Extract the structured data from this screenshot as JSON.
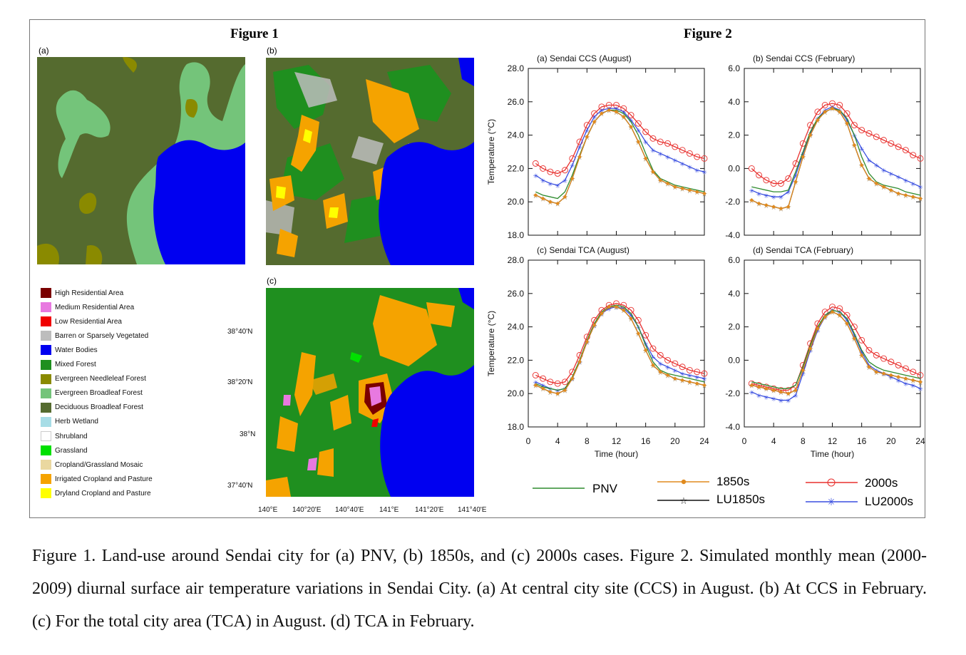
{
  "figure1": {
    "title": "Figure 1",
    "panel_labels": [
      "(a)",
      "(b)",
      "(c)"
    ],
    "legend": [
      {
        "label": "High Residential Area",
        "color": "#7a0000"
      },
      {
        "label": "Medium Residential Area",
        "color": "#e879e0"
      },
      {
        "label": "Low Residential Area",
        "color": "#f00000"
      },
      {
        "label": "Barren or Sparsely Vegetated",
        "color": "#bdbdbd"
      },
      {
        "label": "Water Bodies",
        "color": "#0000f0"
      },
      {
        "label": "Mixed Forest",
        "color": "#1f8f1f"
      },
      {
        "label": "Evergreen Needleleaf Forest",
        "color": "#8a8a00"
      },
      {
        "label": "Evergreen Broadleaf Forest",
        "color": "#74c47a"
      },
      {
        "label": "Deciduous Broadleaf Forest",
        "color": "#556b2f"
      },
      {
        "label": "Herb Wetland",
        "color": "#a7dde6"
      },
      {
        "label": "Shrubland",
        "color": "#ffffff"
      },
      {
        "label": "Grassland",
        "color": "#00e000"
      },
      {
        "label": "Cropland/Grassland Mosaic",
        "color": "#ead8a0"
      },
      {
        "label": "Irrigated Cropland and Pasture",
        "color": "#f5a300"
      },
      {
        "label": "Dryland Cropland and Pasture",
        "color": "#ffff00"
      }
    ],
    "lat_labels": [
      "38°40'N",
      "38°20'N",
      "38°N",
      "37°40'N"
    ],
    "lon_labels": [
      "140°E",
      "140°20'E",
      "140°40'E",
      "141°E",
      "141°20'E",
      "141°40'E"
    ]
  },
  "figure2": {
    "title": "Figure 2",
    "legend": [
      {
        "name": "PNV",
        "color": "#2e8b2e",
        "marker": "none"
      },
      {
        "name": "1850s",
        "color": "#e08a1e",
        "marker": "dot"
      },
      {
        "name": "LU1850s",
        "color": "#111111",
        "marker": "star"
      },
      {
        "name": "2000s",
        "color": "#e8302e",
        "marker": "circle"
      },
      {
        "name": "LU2000s",
        "color": "#3a4fe0",
        "marker": "asterisk"
      }
    ]
  },
  "chart_data": [
    {
      "type": "line",
      "title": "(a) Sendai CCS (August)",
      "xlabel": "",
      "ylabel": "Temperature (°C)",
      "ylim": [
        18,
        28
      ],
      "yticks": [
        "28.0",
        "26.0",
        "24.0",
        "22.0",
        "20.0",
        "18.0"
      ],
      "xlim": [
        0,
        24
      ],
      "xticks": [],
      "x": [
        1,
        2,
        3,
        4,
        5,
        6,
        7,
        8,
        9,
        10,
        11,
        12,
        13,
        14,
        15,
        16,
        17,
        18,
        19,
        20,
        21,
        22,
        23,
        24
      ],
      "series": [
        {
          "name": "PNV",
          "values": [
            20.6,
            20.4,
            20.3,
            20.2,
            20.6,
            21.6,
            22.8,
            23.9,
            24.8,
            25.3,
            25.5,
            25.5,
            25.3,
            24.8,
            24.0,
            22.9,
            21.9,
            21.4,
            21.2,
            21.0,
            20.9,
            20.8,
            20.7,
            20.6
          ]
        },
        {
          "name": "1850s",
          "values": [
            20.4,
            20.2,
            20.0,
            19.9,
            20.3,
            21.4,
            22.7,
            23.9,
            24.8,
            25.3,
            25.5,
            25.4,
            25.1,
            24.5,
            23.6,
            22.6,
            21.8,
            21.3,
            21.1,
            20.9,
            20.8,
            20.7,
            20.6,
            20.5
          ]
        },
        {
          "name": "LU1850s",
          "values": [
            20.4,
            20.2,
            20.0,
            19.9,
            20.3,
            21.4,
            22.7,
            23.9,
            24.8,
            25.3,
            25.5,
            25.4,
            25.1,
            24.5,
            23.6,
            22.6,
            21.8,
            21.3,
            21.1,
            20.9,
            20.8,
            20.7,
            20.6,
            20.5
          ]
        },
        {
          "name": "2000s",
          "values": [
            22.3,
            22.0,
            21.8,
            21.7,
            21.9,
            22.6,
            23.6,
            24.6,
            25.3,
            25.7,
            25.8,
            25.8,
            25.6,
            25.2,
            24.7,
            24.2,
            23.8,
            23.6,
            23.5,
            23.3,
            23.1,
            22.9,
            22.7,
            22.6
          ]
        },
        {
          "name": "LU2000s",
          "values": [
            21.6,
            21.3,
            21.1,
            21.0,
            21.3,
            22.2,
            23.3,
            24.3,
            25.1,
            25.5,
            25.6,
            25.6,
            25.4,
            24.9,
            24.3,
            23.6,
            23.1,
            22.9,
            22.7,
            22.5,
            22.3,
            22.1,
            21.9,
            21.8
          ]
        }
      ]
    },
    {
      "type": "line",
      "title": "(b) Sendai CCS (February)",
      "xlabel": "",
      "ylabel": "",
      "ylim": [
        -4,
        6
      ],
      "yticks": [
        "6.0",
        "4.0",
        "2.0",
        "0.0",
        "-2.0",
        "-4.0"
      ],
      "xlim": [
        0,
        24
      ],
      "xticks": [],
      "x": [
        1,
        2,
        3,
        4,
        5,
        6,
        7,
        8,
        9,
        10,
        11,
        12,
        13,
        14,
        15,
        16,
        17,
        18,
        19,
        20,
        21,
        22,
        23,
        24
      ],
      "series": [
        {
          "name": "PNV",
          "values": [
            -1.1,
            -1.2,
            -1.3,
            -1.4,
            -1.4,
            -1.3,
            -0.2,
            1.0,
            2.2,
            3.0,
            3.4,
            3.6,
            3.5,
            3.0,
            2.0,
            0.7,
            -0.3,
            -0.8,
            -1.0,
            -1.1,
            -1.2,
            -1.4,
            -1.5,
            -1.6
          ]
        },
        {
          "name": "1850s",
          "values": [
            -1.9,
            -2.1,
            -2.2,
            -2.3,
            -2.4,
            -2.3,
            -0.8,
            0.7,
            2.0,
            2.9,
            3.4,
            3.6,
            3.4,
            2.7,
            1.4,
            0.2,
            -0.6,
            -0.9,
            -1.1,
            -1.3,
            -1.5,
            -1.6,
            -1.7,
            -1.8
          ]
        },
        {
          "name": "LU1850s",
          "values": [
            -1.9,
            -2.1,
            -2.2,
            -2.3,
            -2.4,
            -2.3,
            -0.8,
            0.7,
            2.0,
            2.9,
            3.4,
            3.6,
            3.4,
            2.7,
            1.4,
            0.2,
            -0.6,
            -0.9,
            -1.1,
            -1.3,
            -1.5,
            -1.6,
            -1.7,
            -1.8
          ]
        },
        {
          "name": "2000s",
          "values": [
            0.0,
            -0.4,
            -0.7,
            -0.9,
            -0.9,
            -0.6,
            0.3,
            1.5,
            2.6,
            3.4,
            3.8,
            3.9,
            3.8,
            3.3,
            2.6,
            2.3,
            2.1,
            1.9,
            1.7,
            1.5,
            1.3,
            1.1,
            0.8,
            0.6
          ]
        },
        {
          "name": "LU2000s",
          "values": [
            -1.3,
            -1.5,
            -1.6,
            -1.7,
            -1.7,
            -1.4,
            -0.4,
            0.9,
            2.1,
            3.0,
            3.5,
            3.7,
            3.5,
            2.9,
            2.0,
            1.2,
            0.5,
            0.2,
            -0.1,
            -0.3,
            -0.5,
            -0.7,
            -0.9,
            -1.1
          ]
        }
      ]
    },
    {
      "type": "line",
      "title": "(c) Sendai TCA (August)",
      "xlabel": "Time (hour)",
      "ylabel": "Temperature (°C)",
      "ylim": [
        18,
        28
      ],
      "yticks": [
        "28.0",
        "26.0",
        "24.0",
        "22.0",
        "20.0",
        "18.0"
      ],
      "xlim": [
        0,
        24
      ],
      "xticks": [
        "0",
        "4",
        "8",
        "12",
        "16",
        "20",
        "24"
      ],
      "x": [
        1,
        2,
        3,
        4,
        5,
        6,
        7,
        8,
        9,
        10,
        11,
        12,
        13,
        14,
        15,
        16,
        17,
        18,
        19,
        20,
        21,
        22,
        23,
        24
      ],
      "series": [
        {
          "name": "PNV",
          "values": [
            20.6,
            20.4,
            20.3,
            20.2,
            20.3,
            21.0,
            22.0,
            23.2,
            24.2,
            24.9,
            25.2,
            25.3,
            25.2,
            24.8,
            24.0,
            22.9,
            21.9,
            21.4,
            21.2,
            21.1,
            21.0,
            20.9,
            20.8,
            20.7
          ]
        },
        {
          "name": "1850s",
          "values": [
            20.5,
            20.3,
            20.1,
            20.0,
            20.2,
            20.9,
            21.9,
            23.1,
            24.1,
            24.8,
            25.2,
            25.2,
            25.0,
            24.5,
            23.6,
            22.6,
            21.7,
            21.3,
            21.1,
            20.9,
            20.8,
            20.7,
            20.6,
            20.5
          ]
        },
        {
          "name": "LU1850s",
          "values": [
            20.5,
            20.3,
            20.1,
            20.0,
            20.2,
            20.9,
            21.9,
            23.1,
            24.1,
            24.8,
            25.2,
            25.2,
            25.0,
            24.5,
            23.6,
            22.6,
            21.7,
            21.3,
            21.1,
            20.9,
            20.8,
            20.7,
            20.6,
            20.5
          ]
        },
        {
          "name": "2000s",
          "values": [
            21.1,
            20.9,
            20.7,
            20.6,
            20.7,
            21.3,
            22.3,
            23.4,
            24.4,
            25.0,
            25.3,
            25.4,
            25.3,
            25.0,
            24.4,
            23.5,
            22.7,
            22.3,
            22.0,
            21.8,
            21.6,
            21.4,
            21.3,
            21.2
          ]
        },
        {
          "name": "LU2000s",
          "values": [
            20.7,
            20.5,
            20.3,
            20.2,
            20.3,
            20.9,
            21.9,
            23.1,
            24.1,
            24.8,
            25.1,
            25.2,
            25.1,
            24.7,
            24.0,
            23.0,
            22.2,
            21.8,
            21.6,
            21.4,
            21.2,
            21.1,
            21.0,
            20.9
          ]
        }
      ]
    },
    {
      "type": "line",
      "title": "(d) Sendai TCA (February)",
      "xlabel": "Time (hour)",
      "ylabel": "",
      "ylim": [
        -4,
        6
      ],
      "yticks": [
        "6.0",
        "4.0",
        "2.0",
        "0.0",
        "-2.0",
        "-4.0"
      ],
      "xlim": [
        0,
        24
      ],
      "xticks": [
        "0",
        "4",
        "8",
        "12",
        "16",
        "20",
        "24"
      ],
      "x": [
        1,
        2,
        3,
        4,
        5,
        6,
        7,
        8,
        9,
        10,
        11,
        12,
        13,
        14,
        15,
        16,
        17,
        18,
        19,
        20,
        21,
        22,
        23,
        24
      ],
      "series": [
        {
          "name": "PNV",
          "values": [
            -1.3,
            -1.4,
            -1.5,
            -1.6,
            -1.7,
            -1.7,
            -1.5,
            -0.4,
            0.9,
            2.0,
            2.7,
            3.0,
            2.9,
            2.5,
            1.6,
            0.6,
            -0.1,
            -0.4,
            -0.6,
            -0.7,
            -0.8,
            -0.9,
            -1.0,
            -1.1
          ]
        },
        {
          "name": "1850s",
          "values": [
            -1.5,
            -1.6,
            -1.7,
            -1.8,
            -1.9,
            -2.0,
            -1.8,
            -0.6,
            0.7,
            1.9,
            2.6,
            2.9,
            2.7,
            2.2,
            1.3,
            0.3,
            -0.4,
            -0.7,
            -0.8,
            -0.9,
            -1.0,
            -1.1,
            -1.2,
            -1.3
          ]
        },
        {
          "name": "LU1850s",
          "values": [
            -1.5,
            -1.6,
            -1.7,
            -1.8,
            -1.9,
            -2.0,
            -1.8,
            -0.6,
            0.7,
            1.9,
            2.6,
            2.9,
            2.7,
            2.2,
            1.3,
            0.3,
            -0.4,
            -0.7,
            -0.8,
            -0.9,
            -1.0,
            -1.1,
            -1.2,
            -1.3
          ]
        },
        {
          "name": "2000s",
          "values": [
            -1.4,
            -1.5,
            -1.6,
            -1.7,
            -1.8,
            -1.8,
            -1.5,
            -0.3,
            1.0,
            2.2,
            2.9,
            3.2,
            3.1,
            2.7,
            2.0,
            1.2,
            0.6,
            0.3,
            0.1,
            -0.1,
            -0.3,
            -0.5,
            -0.7,
            -0.9
          ]
        },
        {
          "name": "LU2000s",
          "values": [
            -1.9,
            -2.1,
            -2.2,
            -2.3,
            -2.4,
            -2.4,
            -2.1,
            -0.8,
            0.6,
            1.8,
            2.6,
            3.0,
            2.9,
            2.4,
            1.5,
            0.5,
            -0.3,
            -0.6,
            -0.8,
            -1.0,
            -1.2,
            -1.4,
            -1.5,
            -1.7
          ]
        }
      ]
    }
  ],
  "caption": "Figure 1. Land-use around Sendai city for (a) PNV, (b) 1850s, and (c) 2000s cases. Figure 2. Simulated monthly mean (2000-2009) diurnal surface air temperature variations in Sendai City. (a) At central city site (CCS) in August. (b) At CCS in February. (c) For the total city area (TCA) in August. (d) TCA in February."
}
